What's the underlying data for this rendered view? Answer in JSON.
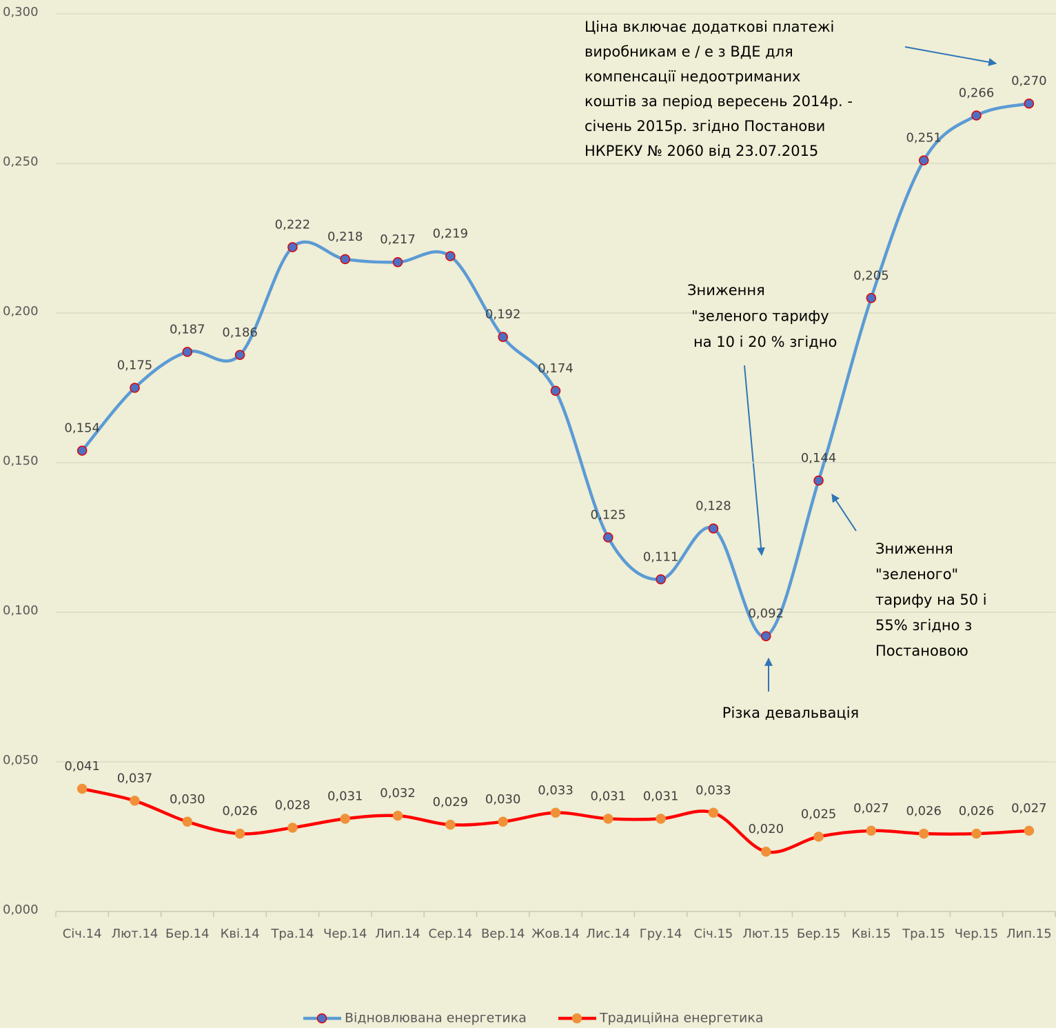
{
  "chart_data": {
    "type": "line",
    "categories": [
      "Січ.14",
      "Лют.14",
      "Бер.14",
      "Кві.14",
      "Тра.14",
      "Чер.14",
      "Лип.14",
      "Сер.14",
      "Вер.14",
      "Жов.14",
      "Лис.14",
      "Гру.14",
      "Січ.15",
      "Лют.15",
      "Бер.15",
      "Кві.15",
      "Тра.15",
      "Чер.15",
      "Лип.15"
    ],
    "series": [
      {
        "name": "Відновлювана енергетика",
        "color": "#5b9bd5",
        "marker_color": "#4f6fc4",
        "marker_edge": "#e00000",
        "values": [
          0.154,
          0.175,
          0.187,
          0.186,
          0.222,
          0.218,
          0.217,
          0.219,
          0.192,
          0.174,
          0.125,
          0.111,
          0.128,
          0.092,
          0.144,
          0.205,
          0.251,
          0.266,
          0.27
        ],
        "value_labels": [
          "0,154",
          "0,175",
          "0,187",
          "0,186",
          "0,222",
          "0,218",
          "0,217",
          "0,219",
          "0,192",
          "0,174",
          "0,125",
          "0,111",
          "0,128",
          "0,092",
          "0,144",
          "0,205",
          "0,251",
          "0,266",
          "0,270"
        ]
      },
      {
        "name": "Традиційна енергетика",
        "color": "#ff0000",
        "marker_color": "#f0913a",
        "marker_edge": "#f0913a",
        "values": [
          0.041,
          0.037,
          0.03,
          0.026,
          0.028,
          0.031,
          0.032,
          0.029,
          0.03,
          0.033,
          0.031,
          0.031,
          0.033,
          0.02,
          0.025,
          0.027,
          0.026,
          0.026,
          0.027
        ],
        "value_labels": [
          "0,041",
          "0,037",
          "0,030",
          "0,026",
          "0,028",
          "0,031",
          "0,032",
          "0,029",
          "0,030",
          "0,033",
          "0,031",
          "0,031",
          "0,033",
          "0,020",
          "0,025",
          "0,027",
          "0,026",
          "0,026",
          "0,027"
        ]
      }
    ],
    "ylim": [
      0,
      0.3
    ],
    "yticks": [
      {
        "value": 0,
        "label": "0,000"
      },
      {
        "value": 0.05,
        "label": "0,050"
      },
      {
        "value": 0.1,
        "label": "0,100"
      },
      {
        "value": 0.15,
        "label": "0,150"
      },
      {
        "value": 0.2,
        "label": "0,200"
      },
      {
        "value": 0.25,
        "label": "0,250"
      },
      {
        "value": 0.3,
        "label": "0,300"
      }
    ],
    "grid": true,
    "smooth": true,
    "legend": "bottom",
    "annotations": [
      {
        "lines": [
          "Ціна включає додаткові платежі",
          "виробникам е / е з ВДЕ для",
          "компенсації недоотриманих",
          "коштів за період вересень 2014р. -",
          "січень 2015р. згідно Постанови",
          "НКРЕКУ № 2060  від 23.07.2015"
        ]
      },
      {
        "lines": [
          "Зниження",
          "\"зеленого тарифу",
          "на 10 і 20 % згідно"
        ]
      },
      {
        "lines": [
          "Зниження",
          "\"зеленого\"",
          "тарифу на 50 і",
          "55% згідно з",
          "Постановою"
        ]
      },
      {
        "lines": [
          "Різка девальвація"
        ]
      }
    ]
  }
}
